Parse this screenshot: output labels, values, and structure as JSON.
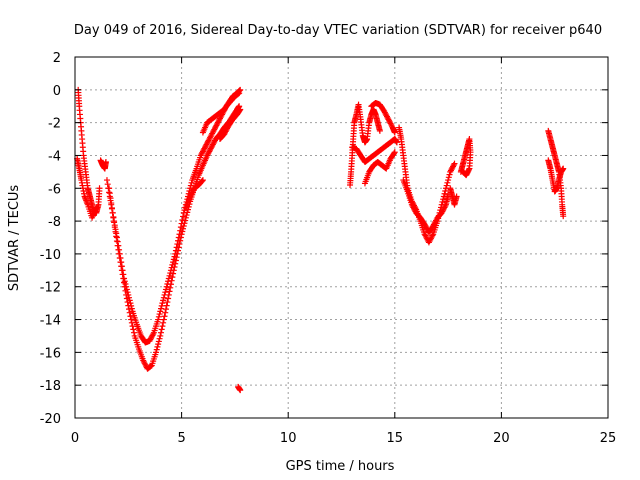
{
  "chart_data": {
    "type": "scatter",
    "title": "Day 049 of 2016, Sidereal Day-to-day VTEC variation (SDTVAR) for receiver p640",
    "xlabel": "GPS time / hours",
    "ylabel": "SDTVAR / TECUs",
    "xlim": [
      0,
      25
    ],
    "ylim": [
      -20,
      2
    ],
    "xticks": [
      0,
      5,
      10,
      15,
      20,
      25
    ],
    "yticks": [
      2,
      0,
      -2,
      -4,
      -6,
      -8,
      -10,
      -12,
      -14,
      -16,
      -18,
      -20
    ],
    "grid": true,
    "marker": "+",
    "series_color": "#ff0000",
    "series": [
      {
        "name": "SDTVAR",
        "segments": [
          [
            [
              0.15,
              0.0
            ],
            [
              0.2,
              -1.0
            ],
            [
              0.3,
              -2.5
            ],
            [
              0.4,
              -4.0
            ],
            [
              0.5,
              -5.0
            ],
            [
              0.6,
              -6.0
            ],
            [
              0.7,
              -6.5
            ],
            [
              0.8,
              -7.0
            ],
            [
              0.9,
              -7.5
            ],
            [
              1.0,
              -7.5
            ],
            [
              1.1,
              -7.0
            ],
            [
              1.15,
              -6.0
            ]
          ],
          [
            [
              0.1,
              -4.2
            ],
            [
              0.2,
              -4.8
            ],
            [
              0.3,
              -5.5
            ],
            [
              0.45,
              -6.5
            ],
            [
              0.6,
              -7.0
            ],
            [
              0.8,
              -7.8
            ],
            [
              1.0,
              -7.2
            ]
          ],
          [
            [
              1.2,
              -4.3
            ],
            [
              1.3,
              -4.6
            ],
            [
              1.4,
              -4.8
            ],
            [
              1.45,
              -4.4
            ]
          ],
          [
            [
              1.5,
              -5.5
            ],
            [
              1.7,
              -7.0
            ],
            [
              1.9,
              -8.5
            ],
            [
              2.1,
              -10.0
            ],
            [
              2.3,
              -11.5
            ],
            [
              2.5,
              -12.5
            ],
            [
              2.7,
              -13.5
            ],
            [
              2.9,
              -14.3
            ],
            [
              3.1,
              -15.0
            ],
            [
              3.3,
              -15.4
            ],
            [
              3.5,
              -15.3
            ],
            [
              3.7,
              -14.8
            ],
            [
              3.9,
              -14.0
            ],
            [
              4.1,
              -13.0
            ],
            [
              4.3,
              -12.0
            ],
            [
              4.5,
              -11.0
            ],
            [
              4.7,
              -10.0
            ],
            [
              4.9,
              -8.8
            ],
            [
              5.1,
              -7.5
            ],
            [
              5.3,
              -6.5
            ],
            [
              5.5,
              -5.5
            ],
            [
              5.7,
              -4.8
            ],
            [
              5.9,
              -4.0
            ],
            [
              6.1,
              -3.5
            ],
            [
              6.3,
              -3.0
            ],
            [
              6.5,
              -2.5
            ],
            [
              6.7,
              -2.0
            ],
            [
              6.9,
              -1.5
            ],
            [
              7.1,
              -1.0
            ],
            [
              7.3,
              -0.7
            ],
            [
              7.5,
              -0.4
            ],
            [
              7.7,
              -0.2
            ]
          ],
          [
            [
              1.6,
              -6.0
            ],
            [
              1.8,
              -7.8
            ],
            [
              2.0,
              -9.5
            ],
            [
              2.2,
              -11.0
            ],
            [
              2.4,
              -12.5
            ],
            [
              2.6,
              -13.8
            ],
            [
              2.8,
              -15.0
            ],
            [
              3.0,
              -15.8
            ],
            [
              3.2,
              -16.5
            ],
            [
              3.4,
              -17.0
            ],
            [
              3.6,
              -16.8
            ],
            [
              3.8,
              -16.0
            ],
            [
              4.0,
              -15.0
            ],
            [
              4.2,
              -13.8
            ],
            [
              4.4,
              -12.5
            ],
            [
              4.6,
              -11.2
            ],
            [
              4.8,
              -10.0
            ],
            [
              5.0,
              -8.8
            ],
            [
              5.2,
              -7.8
            ],
            [
              5.4,
              -6.8
            ],
            [
              5.6,
              -6.0
            ],
            [
              5.8,
              -5.2
            ],
            [
              6.0,
              -4.6
            ],
            [
              6.2,
              -4.0
            ],
            [
              6.4,
              -3.5
            ],
            [
              6.6,
              -3.0
            ],
            [
              6.8,
              -2.7
            ],
            [
              7.0,
              -2.3
            ],
            [
              7.2,
              -2.0
            ],
            [
              7.4,
              -1.6
            ],
            [
              7.6,
              -1.2
            ],
            [
              7.7,
              -1.0
            ]
          ],
          [
            [
              5.2,
              -7.2
            ],
            [
              5.4,
              -6.5
            ],
            [
              5.6,
              -6.0
            ],
            [
              5.8,
              -5.8
            ],
            [
              6.0,
              -5.5
            ]
          ],
          [
            [
              6.0,
              -2.6
            ],
            [
              6.2,
              -2.0
            ],
            [
              6.4,
              -1.8
            ],
            [
              6.6,
              -1.6
            ],
            [
              6.8,
              -1.4
            ],
            [
              7.0,
              -1.2
            ],
            [
              7.2,
              -0.8
            ],
            [
              7.4,
              -0.4
            ],
            [
              7.6,
              -0.2
            ],
            [
              7.75,
              0.0
            ]
          ],
          [
            [
              6.8,
              -3.0
            ],
            [
              7.0,
              -2.7
            ],
            [
              7.2,
              -2.2
            ],
            [
              7.4,
              -1.8
            ],
            [
              7.6,
              -1.5
            ],
            [
              7.75,
              -1.2
            ]
          ],
          [
            [
              7.65,
              -18.1
            ],
            [
              7.75,
              -18.3
            ]
          ],
          [
            [
              12.9,
              -5.8
            ],
            [
              12.95,
              -5.0
            ],
            [
              13.0,
              -4.0
            ],
            [
              13.05,
              -3.0
            ],
            [
              13.1,
              -2.0
            ],
            [
              13.2,
              -1.5
            ],
            [
              13.3,
              -0.9
            ],
            [
              13.4,
              -1.8
            ],
            [
              13.5,
              -2.8
            ],
            [
              13.6,
              -3.2
            ],
            [
              13.7,
              -3.0
            ],
            [
              13.8,
              -2.0
            ],
            [
              13.9,
              -1.5
            ],
            [
              14.0,
              -1.2
            ],
            [
              14.1,
              -1.5
            ],
            [
              14.2,
              -2.0
            ],
            [
              14.3,
              -2.5
            ]
          ],
          [
            [
              13.0,
              -3.5
            ],
            [
              13.2,
              -3.6
            ],
            [
              13.4,
              -4.0
            ],
            [
              13.6,
              -4.4
            ],
            [
              13.8,
              -4.2
            ],
            [
              14.0,
              -4.0
            ],
            [
              14.2,
              -3.8
            ],
            [
              14.4,
              -3.6
            ],
            [
              14.6,
              -3.4
            ],
            [
              14.8,
              -3.2
            ],
            [
              15.0,
              -3.0
            ],
            [
              15.1,
              -3.2
            ]
          ],
          [
            [
              13.6,
              -5.7
            ],
            [
              13.8,
              -5.0
            ],
            [
              14.0,
              -4.6
            ],
            [
              14.2,
              -4.4
            ],
            [
              14.4,
              -4.6
            ],
            [
              14.6,
              -4.8
            ],
            [
              14.8,
              -4.2
            ],
            [
              15.0,
              -3.8
            ]
          ],
          [
            [
              13.9,
              -1.0
            ],
            [
              14.1,
              -0.8
            ],
            [
              14.3,
              -0.9
            ],
            [
              14.5,
              -1.3
            ],
            [
              14.7,
              -1.8
            ],
            [
              14.9,
              -2.3
            ],
            [
              15.0,
              -2.6
            ]
          ],
          [
            [
              15.2,
              -2.3
            ],
            [
              15.3,
              -3.0
            ],
            [
              15.4,
              -4.0
            ],
            [
              15.5,
              -5.0
            ],
            [
              15.6,
              -6.0
            ],
            [
              15.8,
              -6.8
            ],
            [
              16.0,
              -7.3
            ],
            [
              16.2,
              -8.0
            ],
            [
              16.4,
              -8.8
            ],
            [
              16.6,
              -9.3
            ],
            [
              16.8,
              -8.8
            ],
            [
              17.0,
              -8.0
            ],
            [
              17.2,
              -7.0
            ],
            [
              17.4,
              -6.0
            ],
            [
              17.6,
              -5.0
            ],
            [
              17.8,
              -4.5
            ]
          ],
          [
            [
              15.4,
              -5.5
            ],
            [
              15.6,
              -6.2
            ],
            [
              15.8,
              -7.0
            ],
            [
              16.0,
              -7.5
            ],
            [
              16.2,
              -7.8
            ],
            [
              16.4,
              -8.2
            ],
            [
              16.6,
              -8.7
            ],
            [
              16.8,
              -8.3
            ],
            [
              17.0,
              -7.8
            ],
            [
              17.2,
              -7.5
            ],
            [
              17.4,
              -7.0
            ],
            [
              17.5,
              -6.4
            ]
          ],
          [
            [
              17.6,
              -6.0
            ],
            [
              17.7,
              -6.5
            ],
            [
              17.8,
              -7.0
            ],
            [
              17.9,
              -6.5
            ]
          ],
          [
            [
              18.1,
              -5.0
            ],
            [
              18.2,
              -4.5
            ],
            [
              18.3,
              -4.0
            ],
            [
              18.4,
              -3.5
            ],
            [
              18.5,
              -3.0
            ],
            [
              18.55,
              -3.8
            ],
            [
              18.5,
              -4.8
            ],
            [
              18.35,
              -5.2
            ],
            [
              18.2,
              -5.0
            ]
          ],
          [
            [
              22.2,
              -2.5
            ],
            [
              22.3,
              -3.0
            ],
            [
              22.4,
              -3.5
            ],
            [
              22.5,
              -4.0
            ],
            [
              22.6,
              -4.5
            ],
            [
              22.7,
              -5.0
            ],
            [
              22.8,
              -6.0
            ],
            [
              22.85,
              -7.0
            ],
            [
              22.9,
              -7.7
            ]
          ],
          [
            [
              22.2,
              -4.3
            ],
            [
              22.3,
              -4.8
            ],
            [
              22.4,
              -5.5
            ],
            [
              22.5,
              -6.2
            ],
            [
              22.6,
              -6.0
            ],
            [
              22.7,
              -5.5
            ],
            [
              22.8,
              -5.0
            ],
            [
              22.9,
              -4.8
            ]
          ]
        ]
      }
    ]
  }
}
